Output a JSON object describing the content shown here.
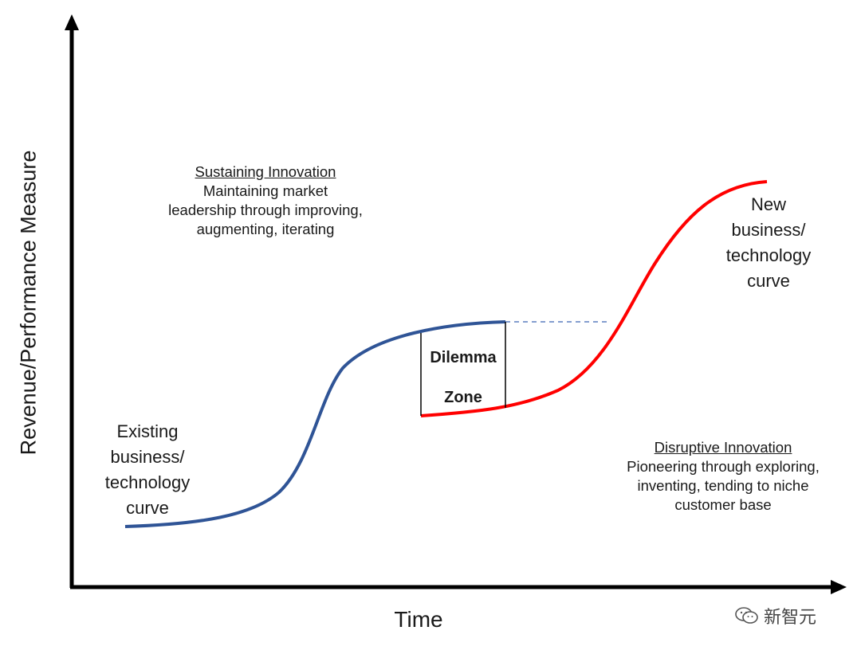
{
  "axes": {
    "y_label": "Revenue/Performance Measure",
    "x_label": "Time"
  },
  "notes": {
    "sustaining": {
      "title": "Sustaining Innovation",
      "line1": "Maintaining market",
      "line2": "leadership through improving,",
      "line3": "augmenting, iterating"
    },
    "disruptive": {
      "title": "Disruptive Innovation",
      "line1": "Pioneering through exploring,",
      "line2": "inventing, tending to niche",
      "line3": "customer base"
    }
  },
  "curves": {
    "existing": {
      "line1": "Existing",
      "line2": "business/",
      "line3": "technology",
      "line4": "curve",
      "color": "#2f5496"
    },
    "new": {
      "line1": "New",
      "line2": "business/",
      "line3": "technology",
      "line4": "curve",
      "color": "#ff0000"
    }
  },
  "dilemma_zone": {
    "line1": "Dilemma",
    "line2": "Zone"
  },
  "watermark": {
    "text": "新智元",
    "icon": "wechat-icon"
  }
}
